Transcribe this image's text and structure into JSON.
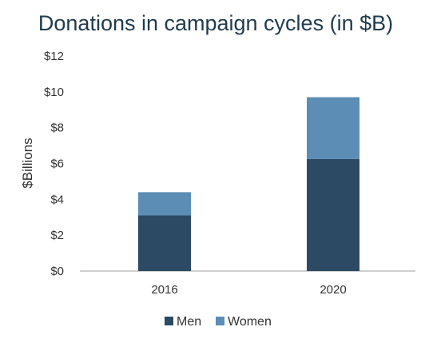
{
  "chart_data": {
    "type": "bar",
    "stacked": true,
    "title": "Donations in campaign cycles (in $B)",
    "xlabel": "",
    "ylabel": "$Billions",
    "categories": [
      "2016",
      "2020"
    ],
    "series": [
      {
        "name": "Men",
        "values": [
          3.1,
          6.25
        ],
        "color": "#2c4a63"
      },
      {
        "name": "Women",
        "values": [
          1.3,
          3.45
        ],
        "color": "#5b8db5"
      }
    ],
    "ylim": [
      0,
      12
    ],
    "yticks": [
      0,
      2,
      4,
      6,
      8,
      10,
      12
    ],
    "ytick_labels": [
      "$0",
      "$2",
      "$4",
      "$6",
      "$8",
      "$10",
      "$12"
    ],
    "grid": false,
    "legend_position": "bottom"
  }
}
